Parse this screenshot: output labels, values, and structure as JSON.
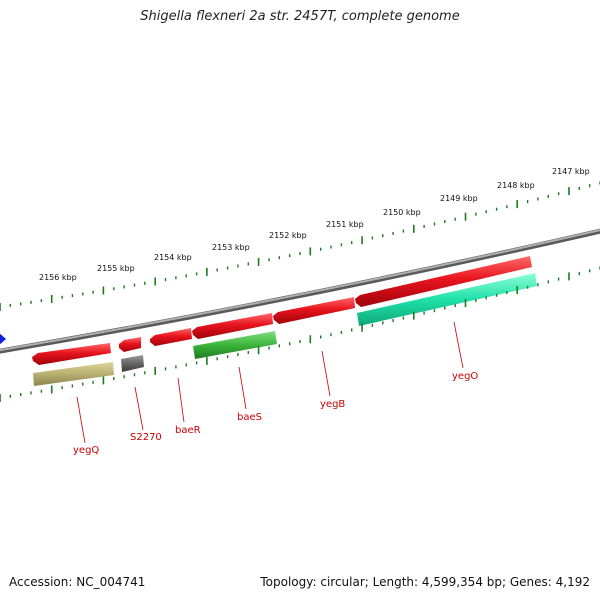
{
  "header": {
    "title": "Shigella flexneri 2a str. 2457T, complete genome"
  },
  "footer": {
    "accession": "Accession: NC_004741",
    "summary": "Topology: circular; Length: 4,599,354 bp; Genes: 4,192"
  },
  "scale": {
    "ticks": [
      "2147 kbp",
      "2148 kbp",
      "2149 kbp",
      "2150 kbp",
      "2151 kbp",
      "2152 kbp",
      "2153 kbp",
      "2154 kbp",
      "2155 kbp",
      "2156 kbp"
    ]
  },
  "colors": {
    "backbone": "#8a8a8a",
    "forward_gene": "#e8141e",
    "tick_green": "#1e7a1e",
    "label_red": "#cc0000",
    "blast_olive": "#b8b070",
    "blast_gray": "#666666",
    "blast_green": "#3cb43c",
    "blast_teal": "#20e0a8",
    "marker_blue": "#1020e0"
  },
  "genes": [
    {
      "name": "yegQ"
    },
    {
      "name": "S2270"
    },
    {
      "name": "baeR"
    },
    {
      "name": "baeS"
    },
    {
      "name": "yegB"
    },
    {
      "name": "yegO"
    }
  ]
}
